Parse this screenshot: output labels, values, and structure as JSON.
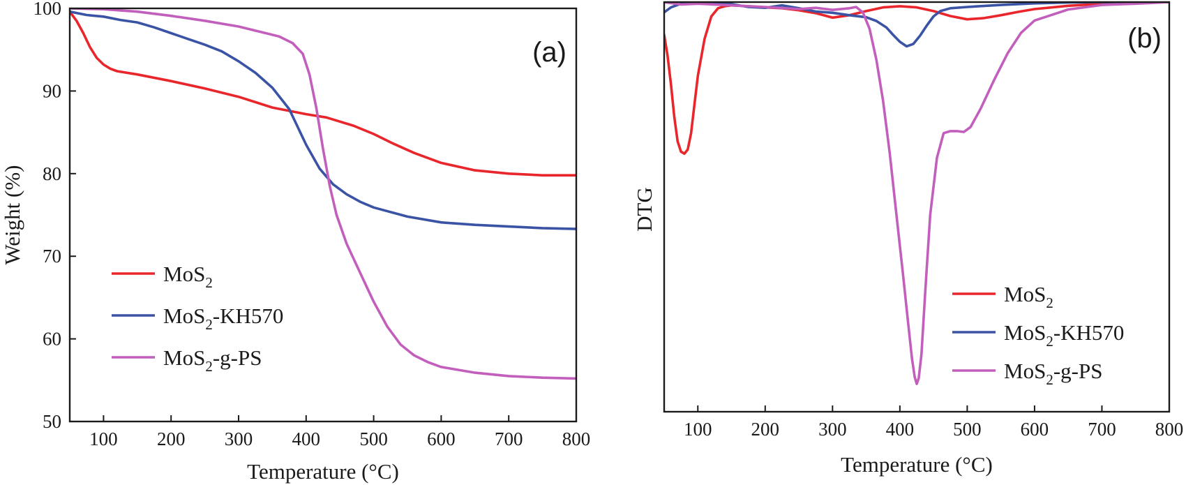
{
  "chart_data": [
    {
      "type": "line",
      "panel_label": "(a)",
      "title": "",
      "xlabel": "Temperature (°C)",
      "ylabel": "Weight (%)",
      "xlim": [
        50,
        800
      ],
      "ylim": [
        50,
        100
      ],
      "xticks": [
        100,
        200,
        300,
        400,
        500,
        600,
        700,
        800
      ],
      "yticks": [
        50,
        60,
        70,
        80,
        90,
        100
      ],
      "legend_position": "lower-left",
      "series": [
        {
          "name": "MoS",
          "subscript": "2",
          "suffix": "",
          "color": "#e8262b",
          "x": [
            50,
            60,
            70,
            80,
            90,
            100,
            110,
            120,
            150,
            200,
            250,
            300,
            350,
            400,
            430,
            470,
            500,
            530,
            560,
            600,
            650,
            700,
            750,
            800
          ],
          "y": [
            99.6,
            98.5,
            97.0,
            95.3,
            94.0,
            93.2,
            92.7,
            92.4,
            92.0,
            91.2,
            90.3,
            89.3,
            88.0,
            87.2,
            86.8,
            85.8,
            84.8,
            83.6,
            82.5,
            81.3,
            80.4,
            80.0,
            79.8,
            79.8
          ]
        },
        {
          "name": "MoS",
          "subscript": "2",
          "suffix": "-KH570",
          "color": "#3a53a4",
          "x": [
            50,
            75,
            100,
            125,
            150,
            175,
            200,
            225,
            250,
            275,
            300,
            325,
            350,
            375,
            400,
            420,
            440,
            460,
            480,
            500,
            550,
            600,
            650,
            700,
            750,
            800
          ],
          "y": [
            99.6,
            99.2,
            99.0,
            98.6,
            98.3,
            97.7,
            97.0,
            96.3,
            95.6,
            94.8,
            93.6,
            92.2,
            90.4,
            87.8,
            83.5,
            80.6,
            78.7,
            77.5,
            76.6,
            75.9,
            74.8,
            74.1,
            73.8,
            73.6,
            73.4,
            73.3
          ]
        },
        {
          "name": "MoS",
          "subscript": "2",
          "suffix": "-g-PS",
          "color": "#c25fbd",
          "x": [
            50,
            100,
            150,
            200,
            250,
            300,
            340,
            360,
            380,
            395,
            405,
            415,
            425,
            435,
            445,
            460,
            480,
            500,
            520,
            540,
            560,
            580,
            600,
            650,
            700,
            750,
            800
          ],
          "y": [
            100,
            99.9,
            99.6,
            99.1,
            98.5,
            97.8,
            97.0,
            96.6,
            95.8,
            94.5,
            92.0,
            88.0,
            83.0,
            78.5,
            75.0,
            71.5,
            68.0,
            64.5,
            61.5,
            59.3,
            58.0,
            57.2,
            56.6,
            55.9,
            55.5,
            55.3,
            55.2
          ]
        }
      ]
    },
    {
      "type": "line",
      "panel_label": "(b)",
      "title": "",
      "xlabel": "Temperature (°C)",
      "ylabel": "DTG",
      "xlim": [
        50,
        800
      ],
      "ylim": [
        0,
        100
      ],
      "ylabel_note": "arbitrary units, no y tick labels",
      "xticks": [
        100,
        200,
        300,
        400,
        500,
        600,
        700,
        800
      ],
      "yticks": [],
      "legend_position": "lower-right",
      "series": [
        {
          "name": "MoS",
          "subscript": "2",
          "suffix": "",
          "color": "#e8262b",
          "x": [
            50,
            55,
            60,
            65,
            70,
            75,
            80,
            85,
            90,
            95,
            100,
            110,
            120,
            130,
            140,
            150,
            175,
            200,
            225,
            250,
            275,
            300,
            325,
            350,
            375,
            400,
            425,
            450,
            475,
            500,
            525,
            550,
            575,
            600,
            650,
            700,
            750,
            800
          ],
          "y": [
            92,
            87,
            80,
            72,
            66,
            63.5,
            63,
            64,
            68,
            75,
            82,
            91,
            96.5,
            98.5,
            99,
            99.2,
            99,
            98.7,
            98.5,
            98,
            97.3,
            96.2,
            96.8,
            97.8,
            98.7,
            99,
            98.7,
            97.8,
            96.6,
            95.8,
            96.1,
            96.8,
            97.6,
            98.3,
            99.1,
            99.6,
            99.8,
            100
          ]
        },
        {
          "name": "MoS",
          "subscript": "2",
          "suffix": "-KH570",
          "color": "#3a53a4",
          "x": [
            50,
            60,
            75,
            90,
            100,
            120,
            150,
            175,
            200,
            225,
            250,
            275,
            300,
            325,
            350,
            365,
            380,
            390,
            400,
            410,
            420,
            430,
            440,
            450,
            460,
            475,
            500,
            550,
            600,
            650,
            700,
            750,
            800
          ],
          "y": [
            97.5,
            98.7,
            99.6,
            100,
            100,
            99.7,
            99.5,
            98.8,
            98.6,
            99.2,
            98.5,
            97.7,
            97.4,
            96.8,
            96.3,
            95.4,
            93.8,
            92.0,
            90.3,
            89.2,
            89.8,
            91.8,
            94.3,
            96.5,
            97.8,
            98.5,
            98.8,
            99.3,
            99.7,
            99.9,
            100,
            100,
            100
          ]
        },
        {
          "name": "MoS",
          "subscript": "2",
          "suffix": "-g-PS",
          "color": "#c25fbd",
          "x": [
            50,
            75,
            100,
            150,
            200,
            250,
            275,
            300,
            325,
            335,
            345,
            355,
            365,
            375,
            385,
            395,
            405,
            412,
            418,
            422,
            425,
            428,
            432,
            438,
            445,
            455,
            465,
            475,
            485,
            495,
            505,
            520,
            540,
            560,
            580,
            600,
            650,
            700,
            750,
            800
          ],
          "y": [
            100,
            99.4,
            99.6,
            99.2,
            98.8,
            98.3,
            98.6,
            98.1,
            98.5,
            98.8,
            97.5,
            93.5,
            86,
            76,
            63,
            48,
            33,
            22,
            13,
            8.5,
            6.8,
            8.2,
            14,
            30,
            48,
            62,
            68,
            68.5,
            68.5,
            68.3,
            69.5,
            74,
            81,
            87.5,
            92.5,
            95.5,
            98.2,
            99.3,
            99.6,
            100
          ]
        }
      ]
    }
  ]
}
